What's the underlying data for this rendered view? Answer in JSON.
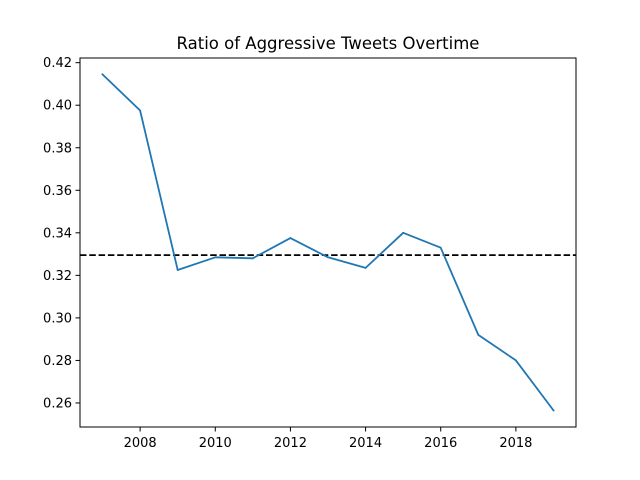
{
  "chart_data": {
    "type": "line",
    "title": "Ratio of Aggressive Tweets Overtime",
    "xlabel": "",
    "ylabel": "",
    "x": [
      2007,
      2008,
      2009,
      2010,
      2011,
      2012,
      2013,
      2014,
      2015,
      2016,
      2017,
      2018,
      2019
    ],
    "series": [
      {
        "values": [
          0.4145,
          0.3975,
          0.3225,
          0.3285,
          0.328,
          0.3375,
          0.3285,
          0.3235,
          0.34,
          0.333,
          0.292,
          0.28,
          0.2565
        ],
        "color": "#1f77b4"
      }
    ],
    "reference_line": {
      "y": 0.3295,
      "style": "dashed",
      "color": "#000000"
    },
    "xlim": [
      2006.4,
      2019.6
    ],
    "ylim": [
      0.2487,
      0.4222
    ],
    "xticks": [
      2008,
      2010,
      2012,
      2014,
      2016,
      2018
    ],
    "yticks": [
      0.26,
      0.28,
      0.3,
      0.32,
      0.34,
      0.36,
      0.38,
      0.4,
      0.42
    ],
    "xtick_labels": [
      "2008",
      "2010",
      "2012",
      "2014",
      "2016",
      "2018"
    ],
    "ytick_labels": [
      "0.26",
      "0.28",
      "0.30",
      "0.32",
      "0.34",
      "0.36",
      "0.38",
      "0.40",
      "0.42"
    ],
    "grid": false,
    "legend": "none"
  }
}
